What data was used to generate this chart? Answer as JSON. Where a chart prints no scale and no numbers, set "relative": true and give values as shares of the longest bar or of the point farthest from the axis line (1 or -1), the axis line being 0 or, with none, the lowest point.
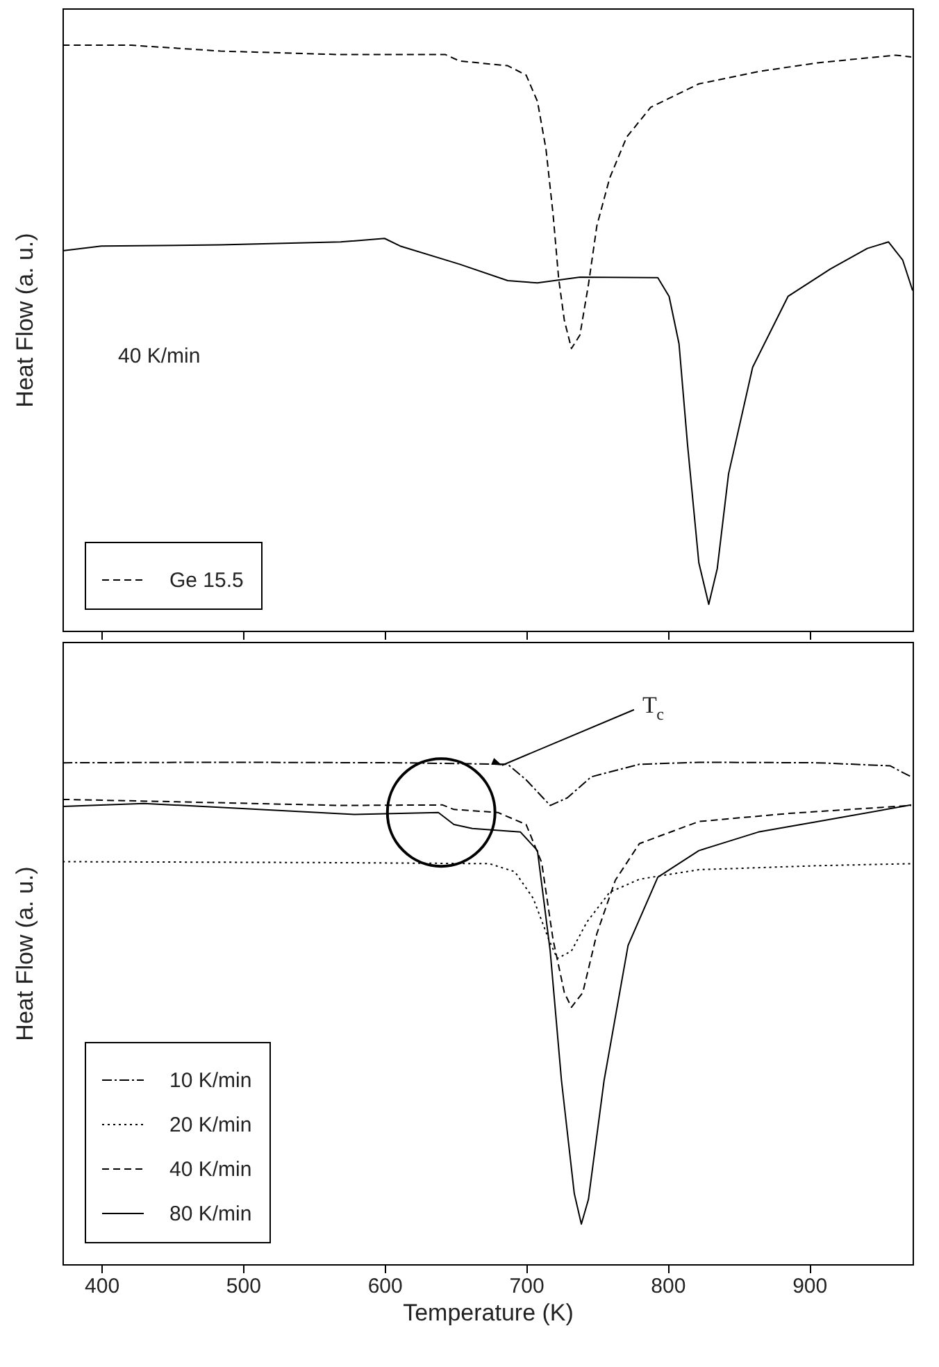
{
  "chart_data": [
    {
      "type": "line",
      "ylabel": "Heat Flow (a. u.)",
      "relative": true,
      "xlim": [
        372.5,
        973
      ],
      "xticks": [
        400,
        500,
        600,
        700,
        800,
        900
      ],
      "tick_labels": false,
      "legend": "bottom left",
      "grid": false,
      "annotations": [
        "40 K/min"
      ],
      "series": [
        {
          "name": "Ge 15.5",
          "color": "#000000",
          "line_style": "dashed",
          "x": [
            372.6,
            421,
            484,
            569,
            643,
            653,
            687,
            700,
            708,
            714,
            719,
            723,
            727,
            732,
            738,
            744,
            750,
            759,
            771,
            788,
            822,
            864,
            906,
            961,
            972
          ],
          "values": [
            1.0,
            1.0,
            0.99,
            0.984,
            0.984,
            0.973,
            0.965,
            0.949,
            0.904,
            0.823,
            0.712,
            0.601,
            0.53,
            0.482,
            0.505,
            0.591,
            0.692,
            0.773,
            0.843,
            0.894,
            0.934,
            0.955,
            0.97,
            0.983,
            0.98
          ]
        },
        {
          "color": "#000000",
          "line_style": "solid",
          "x": [
            372.6,
            400,
            484,
            569,
            600,
            611,
            653,
            687,
            708,
            738,
            793,
            801,
            808,
            814,
            822,
            829,
            835,
            843,
            860,
            885,
            915,
            941,
            956,
            966,
            973
          ],
          "values": [
            0.649,
            0.657,
            0.659,
            0.664,
            0.67,
            0.657,
            0.626,
            0.598,
            0.594,
            0.604,
            0.603,
            0.571,
            0.49,
            0.318,
            0.116,
            0.045,
            0.106,
            0.268,
            0.45,
            0.571,
            0.618,
            0.653,
            0.664,
            0.633,
            0.581
          ]
        }
      ]
    },
    {
      "type": "line",
      "xlabel": "Temperature (K)",
      "ylabel": "Heat Flow (a. u.)",
      "relative": true,
      "xlim": [
        372.5,
        973
      ],
      "xticks": [
        400,
        500,
        600,
        700,
        800,
        900
      ],
      "tick_labels": "x",
      "legend": "bottom left",
      "grid": false,
      "annotations": [
        {
          "text": "T$_{c}$",
          "x": 683,
          "y": 0.994
        }
      ],
      "series": [
        {
          "name": "10 K/min",
          "color": "#000000",
          "line_style": "dashdot",
          "x": [
            372.6,
            484,
            611,
            687,
            700,
            717,
            729,
            746,
            780,
            822,
            906,
            957,
            972
          ],
          "values": [
            0.999,
            1.0,
            0.999,
            0.996,
            0.965,
            0.914,
            0.929,
            0.971,
            0.996,
            1.0,
            0.999,
            0.993,
            0.971
          ]
        },
        {
          "name": "20 K/min",
          "color": "#000000",
          "line_style": "dotted",
          "x": [
            372.6,
            569,
            674,
            692,
            705,
            716,
            722,
            732,
            743,
            759,
            780,
            822,
            906,
            972
          ],
          "values": [
            0.802,
            0.8,
            0.798,
            0.782,
            0.729,
            0.647,
            0.609,
            0.624,
            0.682,
            0.741,
            0.767,
            0.786,
            0.794,
            0.798
          ]
        },
        {
          "name": "40 K/min",
          "color": "#000000",
          "line_style": "dashed",
          "x": [
            372.6,
            442,
            569,
            641,
            649,
            680,
            700,
            711,
            719,
            727,
            732,
            740,
            750,
            763,
            780,
            822,
            885,
            972
          ],
          "values": [
            0.926,
            0.922,
            0.914,
            0.915,
            0.906,
            0.9,
            0.876,
            0.8,
            0.647,
            0.541,
            0.512,
            0.541,
            0.659,
            0.765,
            0.838,
            0.882,
            0.898,
            0.914
          ]
        },
        {
          "name": "80 K/min",
          "color": "#000000",
          "line_style": "solid",
          "x": [
            372.6,
            430,
            579,
            638,
            649,
            662,
            696,
            708,
            717,
            725,
            734,
            739,
            744,
            755,
            772,
            793,
            822,
            864,
            906,
            972
          ],
          "values": [
            0.912,
            0.918,
            0.896,
            0.9,
            0.876,
            0.868,
            0.861,
            0.824,
            0.624,
            0.365,
            0.141,
            0.08,
            0.129,
            0.365,
            0.635,
            0.771,
            0.824,
            0.861,
            0.882,
            0.915
          ]
        }
      ]
    }
  ]
}
